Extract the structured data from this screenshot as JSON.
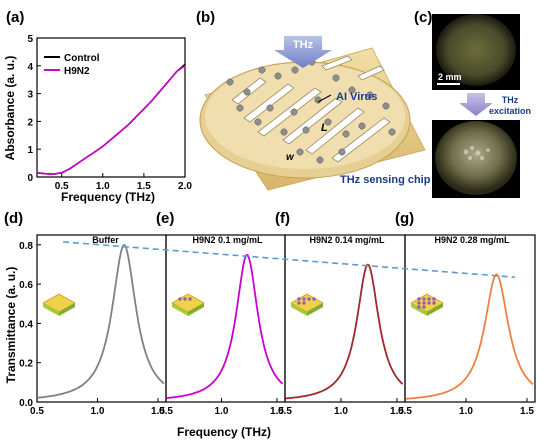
{
  "panel_labels": {
    "a": "(a)",
    "b": "(b)",
    "c": "(c)",
    "d": "(d)",
    "e": "(e)",
    "f": "(f)",
    "g": "(g)"
  },
  "illustration": {
    "thz_label": "THz",
    "virus_label": "AI Virus",
    "l_label": "L",
    "w_label": "w",
    "chip_label": "THz sensing chip"
  },
  "photos": {
    "scale_bar_label": "2 mm",
    "excitation_label_line1": "THz",
    "excitation_label_line2": "excitation"
  },
  "chart_data": [
    {
      "id": "absorbance",
      "type": "line",
      "xlabel": "Frequency (THz)",
      "ylabel": "Absorbance (a. u.)",
      "xlim": [
        0.2,
        2.0
      ],
      "ylim": [
        0,
        5
      ],
      "xticks": [
        "0.5",
        "1.0",
        "1.5",
        "2.0"
      ],
      "yticks": [
        "0",
        "1",
        "2",
        "3",
        "4",
        "5"
      ],
      "legend_position": "top-left",
      "series": [
        {
          "name": "Control",
          "color": "#000000",
          "x": [
            0.2,
            0.3,
            0.4,
            0.5,
            0.6,
            0.7,
            0.8,
            0.9,
            1.0,
            1.1,
            1.2,
            1.3,
            1.4,
            1.5,
            1.6,
            1.7,
            1.8,
            1.9,
            2.0
          ],
          "y": [
            0.15,
            0.12,
            0.1,
            0.15,
            0.3,
            0.5,
            0.7,
            0.9,
            1.1,
            1.35,
            1.6,
            1.85,
            2.15,
            2.45,
            2.75,
            3.1,
            3.45,
            3.8,
            4.05
          ]
        },
        {
          "name": "H9N2",
          "color": "#cc00cc",
          "x": [
            0.2,
            0.3,
            0.4,
            0.5,
            0.6,
            0.7,
            0.8,
            0.9,
            1.0,
            1.1,
            1.2,
            1.3,
            1.4,
            1.5,
            1.6,
            1.7,
            1.8,
            1.9,
            2.0
          ],
          "y": [
            0.15,
            0.12,
            0.1,
            0.15,
            0.3,
            0.5,
            0.7,
            0.9,
            1.1,
            1.35,
            1.6,
            1.85,
            2.15,
            2.45,
            2.75,
            3.1,
            3.45,
            3.8,
            4.0
          ]
        }
      ]
    },
    {
      "id": "transmittance",
      "type": "line",
      "xlabel": "Frequency (THz)",
      "ylabel": "Transmittance (a. u.)",
      "ylim": [
        0.0,
        0.85
      ],
      "yticks": [
        "0.0",
        "0.2",
        "0.4",
        "0.6",
        "0.8"
      ],
      "xticks": [
        "0.5",
        "1.0",
        "1.5"
      ],
      "last_xtick": "0.5",
      "trend_line": {
        "color": "#5b9bd5",
        "style": "dashed",
        "y_start": 0.815,
        "y_end": 0.635
      },
      "panels": [
        {
          "label": "Buffer",
          "color": "#808080",
          "peak_x": 1.22,
          "peak_y": 0.8,
          "width": 0.12
        },
        {
          "label": "H9N2 0.1 mg/mL",
          "color": "#cc00cc",
          "peak_x": 1.23,
          "peak_y": 0.75,
          "width": 0.12
        },
        {
          "label": "H9N2 0.14 mg/mL",
          "color": "#a0282d",
          "peak_x": 1.24,
          "peak_y": 0.7,
          "width": 0.12
        },
        {
          "label": "H9N2 0.28 mg/mL",
          "color": "#f08040",
          "peak_x": 1.25,
          "peak_y": 0.65,
          "width": 0.12
        }
      ]
    }
  ]
}
